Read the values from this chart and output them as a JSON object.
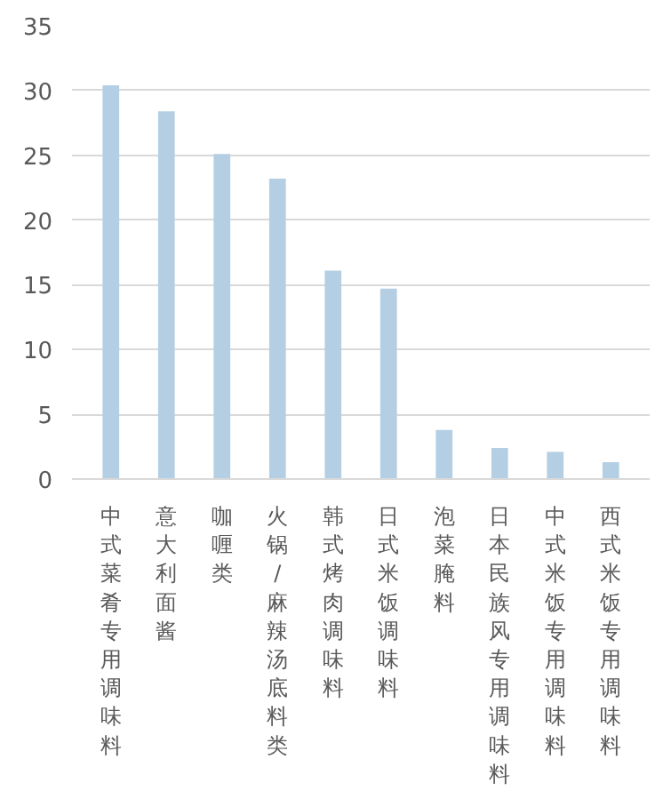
{
  "chart_data": {
    "type": "bar",
    "categories": [
      "中式菜肴专用调味料",
      "意大利面酱",
      "咖喱类",
      "火锅/麻辣汤底料类",
      "韩式烤肉调味料",
      "日式米饭调味料",
      "泡菜腌料",
      "日本民族风专用调味料",
      "中式米饭专用调味料",
      "西式米饭专用调味料"
    ],
    "values": [
      30.4,
      28.4,
      25.1,
      23.2,
      16.1,
      14.7,
      3.8,
      2.4,
      2.1,
      1.3
    ],
    "color": "#b4cfe3",
    "ylim": [
      0,
      35
    ],
    "yticks": [
      0,
      5,
      10,
      15,
      20,
      25,
      30,
      35
    ],
    "grid": "y"
  }
}
